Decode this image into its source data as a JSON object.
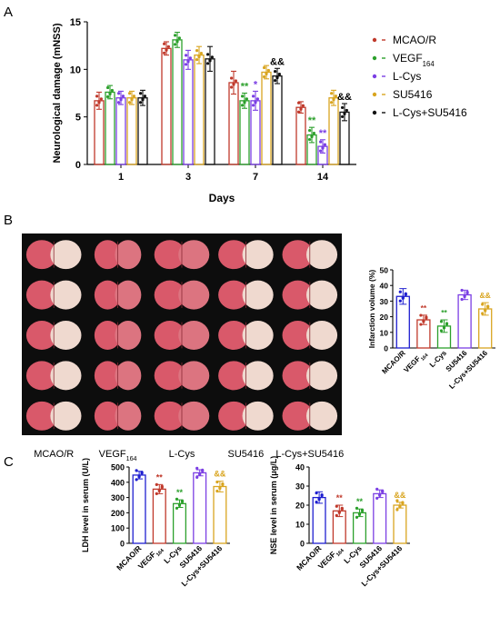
{
  "panel_labels": [
    "A",
    "B",
    "C"
  ],
  "colors": {
    "MCAO/R": "#c0392b",
    "VEGF164": "#2ca02c",
    "L-Cys": "#7b3fe4",
    "SU5416": "#d9a520",
    "L-Cys+SU5416": "#111111",
    "MCAO/R_bar": "#1f1fd0"
  },
  "chart_data": [
    {
      "id": "A",
      "type": "bar",
      "ylabel": "Neurological damage (mNSS)",
      "xlabel": "Days",
      "categories": [
        "1",
        "3",
        "7",
        "14"
      ],
      "ylim": [
        0,
        15
      ],
      "yticks": [
        0,
        5,
        10,
        15
      ],
      "legend_position": "right",
      "series": [
        {
          "name": "MCAO/R",
          "values": [
            6.7,
            12.2,
            8.6,
            6.0
          ],
          "errors": [
            0.9,
            0.7,
            1.2,
            0.6
          ]
        },
        {
          "name": "VEGF164",
          "values": [
            7.6,
            13.1,
            6.7,
            3.1
          ],
          "errors": [
            0.7,
            0.8,
            0.8,
            0.8
          ]
        },
        {
          "name": "L-Cys",
          "values": [
            7.0,
            11.0,
            6.7,
            1.9
          ],
          "errors": [
            0.7,
            1.0,
            1.0,
            0.7
          ]
        },
        {
          "name": "SU5416",
          "values": [
            7.0,
            11.5,
            9.7,
            7.0
          ],
          "errors": [
            0.7,
            0.9,
            0.7,
            0.8
          ]
        },
        {
          "name": "L-Cys+SU5416",
          "values": [
            7.0,
            11.1,
            9.3,
            5.5
          ],
          "errors": [
            0.8,
            1.3,
            0.8,
            0.9
          ]
        }
      ],
      "legend_labels": [
        "MCAO/R",
        "VEGF",
        "L-Cys",
        "SU5416",
        "L-Cys+SU5416"
      ],
      "legend_sub": "164",
      "annotations": [
        {
          "text": "&&",
          "category": "7",
          "series": "L-Cys+SU5416",
          "color": "#000000"
        },
        {
          "text": "&&",
          "category": "14",
          "series": "L-Cys+SU5416",
          "color": "#000000"
        },
        {
          "text": "**",
          "category": "7",
          "series": "VEGF164",
          "color": "#2ca02c"
        },
        {
          "text": "*",
          "category": "7",
          "series": "L-Cys",
          "color": "#7b3fe4"
        },
        {
          "text": "**",
          "category": "14",
          "series": "VEGF164",
          "color": "#2ca02c"
        },
        {
          "text": "**",
          "category": "14",
          "series": "L-Cys",
          "color": "#7b3fe4"
        }
      ]
    },
    {
      "id": "B-chart",
      "type": "bar",
      "ylabel": "Infarction volume (%)",
      "categories": [
        "MCAO/R",
        "VEGF",
        "L-Cys",
        "SU5416",
        "L-Cys+SU5416"
      ],
      "category_sub": [
        "",
        "164",
        "",
        "",
        ""
      ],
      "values": [
        33,
        18,
        14,
        34,
        25
      ],
      "errors": [
        5,
        3,
        4,
        3,
        4
      ],
      "ylim": [
        0,
        50
      ],
      "yticks": [
        0,
        10,
        20,
        30,
        40,
        50
      ],
      "annotations": [
        {
          "text": "**",
          "category": "VEGF",
          "color": "#c0392b"
        },
        {
          "text": "**",
          "category": "L-Cys",
          "color": "#2ca02c"
        },
        {
          "text": "&&",
          "category": "L-Cys+SU5416",
          "color": "#d9a520"
        }
      ]
    },
    {
      "id": "C-left",
      "type": "bar",
      "ylabel": "LDH level in serum (U/L)",
      "categories": [
        "MCAO/R",
        "VEGF",
        "L-Cys",
        "SU5416",
        "L-Cys+SU5416"
      ],
      "category_sub": [
        "",
        "164",
        "",
        "",
        ""
      ],
      "values": [
        447,
        355,
        260,
        462,
        372
      ],
      "errors": [
        25,
        30,
        25,
        20,
        35
      ],
      "ylim": [
        0,
        500
      ],
      "yticks": [
        0,
        100,
        200,
        300,
        400,
        500
      ],
      "annotations": [
        {
          "text": "**",
          "category": "VEGF",
          "color": "#c0392b"
        },
        {
          "text": "**",
          "category": "L-Cys",
          "color": "#2ca02c"
        },
        {
          "text": "&&",
          "category": "L-Cys+SU5416",
          "color": "#d9a520"
        }
      ]
    },
    {
      "id": "C-right",
      "type": "bar",
      "ylabel": "NSE level in serum (μg/L)",
      "categories": [
        "MCAO/R",
        "VEGF",
        "L-Cys",
        "SU5416",
        "L-Cys+SU5416"
      ],
      "category_sub": [
        "",
        "164",
        "",
        "",
        ""
      ],
      "values": [
        24,
        17,
        16,
        26,
        20
      ],
      "errors": [
        3,
        3,
        2,
        2,
        1.5
      ],
      "ylim": [
        0,
        40
      ],
      "yticks": [
        0,
        10,
        20,
        30,
        40
      ],
      "annotations": [
        {
          "text": "**",
          "category": "VEGF",
          "color": "#c0392b"
        },
        {
          "text": "**",
          "category": "L-Cys",
          "color": "#2ca02c"
        },
        {
          "text": "&&",
          "category": "L-Cys+SU5416",
          "color": "#d9a520"
        }
      ]
    }
  ],
  "brain_panel": {
    "column_labels": [
      "MCAO/R",
      "VEGF",
      "L-Cys",
      "SU5416",
      "L-Cys+SU5416"
    ],
    "column_sub": [
      "",
      "164",
      "",
      "",
      ""
    ],
    "rows": 5
  }
}
